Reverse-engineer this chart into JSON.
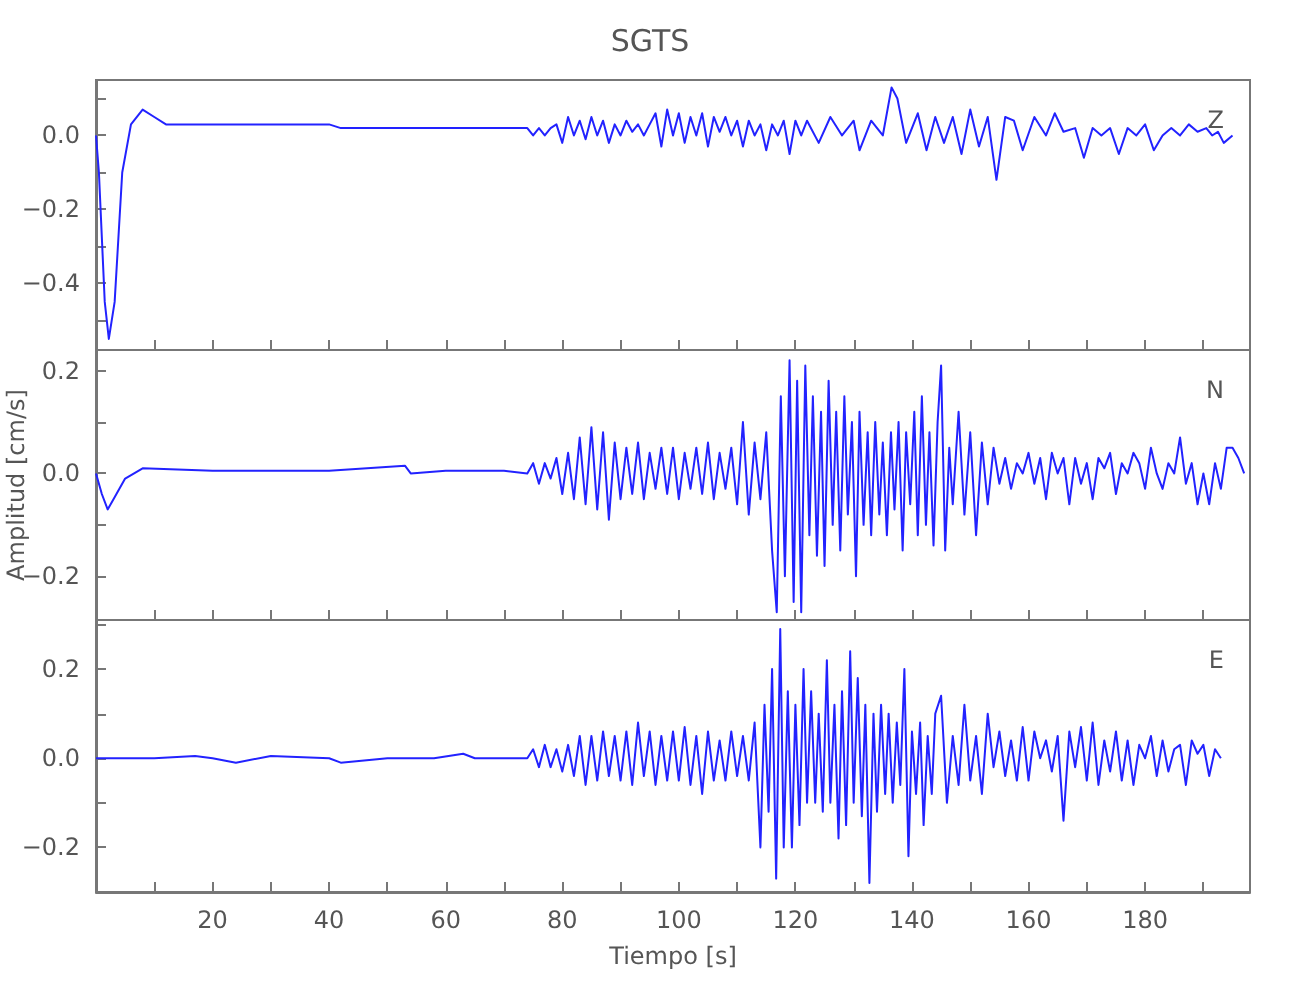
{
  "chart_data": [
    {
      "type": "line",
      "title": "SGTS",
      "annotations": [
        "Z"
      ],
      "tick_labels": "y",
      "marker": "none",
      "xlim": [
        0,
        198
      ],
      "xticks": [
        {
          "value": 10,
          "label": null
        },
        {
          "value": 20,
          "label": null
        },
        {
          "value": 30,
          "label": null
        },
        {
          "value": 40,
          "label": null
        },
        {
          "value": 50,
          "label": null
        },
        {
          "value": 60,
          "label": null
        },
        {
          "value": 70,
          "label": null
        },
        {
          "value": 80,
          "label": null
        },
        {
          "value": 90,
          "label": null
        },
        {
          "value": 100,
          "label": null
        },
        {
          "value": 110,
          "label": null
        },
        {
          "value": 120,
          "label": null
        },
        {
          "value": 130,
          "label": null
        },
        {
          "value": 140,
          "label": null
        },
        {
          "value": 150,
          "label": null
        },
        {
          "value": 160,
          "label": null
        },
        {
          "value": 170,
          "label": null
        },
        {
          "value": 180,
          "label": null
        },
        {
          "value": 190,
          "label": null
        }
      ],
      "ylim": [
        -0.58,
        0.15
      ],
      "yticks": [
        {
          "value": -0.5,
          "label": null
        },
        {
          "value": -0.4,
          "label": "−0.4"
        },
        {
          "value": -0.3,
          "label": null
        },
        {
          "value": -0.2,
          "label": "−0.2"
        },
        {
          "value": -0.1,
          "label": null
        },
        {
          "value": 0,
          "label": "0.0"
        },
        {
          "value": 0.1,
          "label": null
        }
      ],
      "series": [
        {
          "color": "#2222ff",
          "x": [
            0,
            0.5,
            1.5,
            2.2,
            3.2,
            4.5,
            6,
            8,
            10,
            12,
            20,
            30,
            40,
            42,
            50,
            60,
            70,
            74,
            75,
            76,
            77,
            78,
            79,
            80,
            81,
            82,
            83,
            84,
            85,
            86,
            87,
            88,
            89,
            90,
            91,
            92,
            93,
            94,
            95,
            96,
            97,
            98,
            99,
            100,
            101,
            102,
            103,
            104,
            105,
            106,
            107,
            108,
            109,
            110,
            111,
            112,
            113,
            114,
            115,
            116,
            117,
            118,
            119,
            120,
            121,
            122,
            124,
            126,
            128,
            130,
            131,
            133,
            135,
            136.5,
            137.5,
            139,
            141,
            142.5,
            144,
            145.5,
            147,
            148.5,
            150,
            151.5,
            153,
            154.5,
            156,
            157.5,
            159,
            161,
            163,
            164.5,
            166,
            168,
            169.5,
            171,
            172.5,
            174,
            175.5,
            177,
            178.5,
            180,
            181.5,
            183,
            184.5,
            186,
            187.5,
            189,
            190.5,
            191.5,
            192.5,
            193.5,
            195
          ],
          "values": [
            0.0,
            -0.1,
            -0.45,
            -0.55,
            -0.45,
            -0.1,
            0.03,
            0.07,
            0.05,
            0.03,
            0.03,
            0.03,
            0.03,
            0.02,
            0.02,
            0.02,
            0.02,
            0.02,
            0.0,
            0.02,
            0.0,
            0.02,
            0.03,
            -0.02,
            0.05,
            0.0,
            0.04,
            -0.01,
            0.05,
            0.0,
            0.04,
            -0.02,
            0.03,
            0.0,
            0.04,
            0.01,
            0.03,
            0.0,
            0.03,
            0.06,
            -0.03,
            0.07,
            0.0,
            0.06,
            -0.02,
            0.05,
            0.0,
            0.06,
            -0.03,
            0.05,
            0.01,
            0.05,
            0.0,
            0.04,
            -0.03,
            0.04,
            0.0,
            0.03,
            -0.04,
            0.03,
            0.0,
            0.04,
            -0.05,
            0.04,
            0.0,
            0.04,
            -0.02,
            0.05,
            0.0,
            0.04,
            -0.04,
            0.04,
            0.0,
            0.13,
            0.1,
            -0.02,
            0.06,
            -0.04,
            0.05,
            -0.02,
            0.05,
            -0.05,
            0.07,
            -0.03,
            0.05,
            -0.12,
            0.05,
            0.04,
            -0.04,
            0.05,
            0.0,
            0.06,
            0.01,
            0.02,
            -0.06,
            0.02,
            0.0,
            0.02,
            -0.05,
            0.02,
            0.0,
            0.03,
            -0.04,
            0.0,
            0.02,
            0.0,
            0.03,
            0.01,
            0.02,
            0.0,
            0.01,
            -0.02,
            0.0
          ]
        }
      ]
    },
    {
      "type": "line",
      "ylabel": "Amplitud [cm/s]",
      "annotations": [
        "N"
      ],
      "tick_labels": "y",
      "marker": "none",
      "xlim": [
        0,
        198
      ],
      "xticks": [
        {
          "value": 10,
          "label": null
        },
        {
          "value": 20,
          "label": null
        },
        {
          "value": 30,
          "label": null
        },
        {
          "value": 40,
          "label": null
        },
        {
          "value": 50,
          "label": null
        },
        {
          "value": 60,
          "label": null
        },
        {
          "value": 70,
          "label": null
        },
        {
          "value": 80,
          "label": null
        },
        {
          "value": 90,
          "label": null
        },
        {
          "value": 100,
          "label": null
        },
        {
          "value": 110,
          "label": null
        },
        {
          "value": 120,
          "label": null
        },
        {
          "value": 130,
          "label": null
        },
        {
          "value": 140,
          "label": null
        },
        {
          "value": 150,
          "label": null
        },
        {
          "value": 160,
          "label": null
        },
        {
          "value": 170,
          "label": null
        },
        {
          "value": 180,
          "label": null
        },
        {
          "value": 190,
          "label": null
        }
      ],
      "ylim": [
        -0.285,
        0.24
      ],
      "yticks": [
        {
          "value": -0.2,
          "label": "−0.2"
        },
        {
          "value": -0.1,
          "label": null
        },
        {
          "value": 0,
          "label": "0.0"
        },
        {
          "value": 0.1,
          "label": null
        },
        {
          "value": 0.2,
          "label": "0.2"
        }
      ],
      "series": [
        {
          "color": "#2222ff",
          "x": [
            0,
            1,
            2,
            3,
            5,
            8,
            20,
            40,
            53,
            54,
            60,
            70,
            74,
            75,
            76,
            77,
            78,
            79,
            80,
            81,
            82,
            83,
            84,
            85,
            86,
            87,
            88,
            89,
            90,
            91,
            92,
            93,
            94,
            95,
            96,
            97,
            98,
            99,
            100,
            101,
            102,
            103,
            104,
            105,
            106,
            107,
            108,
            109,
            110,
            111,
            112,
            113,
            114,
            115,
            116,
            116.8,
            117.5,
            118.2,
            119,
            119.7,
            120.3,
            121,
            121.7,
            122.4,
            123,
            123.7,
            124.4,
            125,
            125.7,
            126.4,
            127,
            127.7,
            128.4,
            129,
            129.7,
            130.4,
            131,
            131.7,
            132.4,
            133,
            133.7,
            134.4,
            135,
            135.7,
            136.4,
            137,
            137.7,
            138.4,
            139,
            139.7,
            140.4,
            141,
            141.7,
            142.4,
            143,
            143.7,
            144.4,
            145,
            145.7,
            146.4,
            147,
            148,
            149,
            150,
            151,
            152,
            153,
            154,
            155,
            156,
            157,
            158,
            159,
            160,
            161,
            162,
            163,
            164,
            165,
            166,
            167,
            168,
            169,
            170,
            171,
            172,
            173,
            174,
            175,
            176,
            177,
            178,
            179,
            180,
            181,
            182,
            183,
            184,
            185,
            186,
            187,
            188,
            189,
            190,
            191,
            192,
            193,
            194,
            195,
            196,
            197
          ],
          "values": [
            0,
            -0.04,
            -0.07,
            -0.05,
            -0.01,
            0.01,
            0.005,
            0.005,
            0.015,
            0.0,
            0.005,
            0.005,
            0.0,
            0.02,
            -0.02,
            0.02,
            -0.01,
            0.03,
            -0.04,
            0.04,
            -0.05,
            0.07,
            -0.06,
            0.09,
            -0.07,
            0.08,
            -0.09,
            0.06,
            -0.05,
            0.05,
            -0.04,
            0.06,
            -0.05,
            0.04,
            -0.03,
            0.05,
            -0.04,
            0.05,
            -0.05,
            0.04,
            -0.03,
            0.05,
            -0.04,
            0.06,
            -0.05,
            0.04,
            -0.03,
            0.05,
            -0.06,
            0.1,
            -0.08,
            0.06,
            -0.05,
            0.08,
            -0.15,
            -0.27,
            0.15,
            -0.2,
            0.22,
            -0.25,
            0.18,
            -0.27,
            0.21,
            -0.12,
            0.15,
            -0.16,
            0.12,
            -0.18,
            0.18,
            -0.1,
            0.12,
            -0.15,
            0.15,
            -0.08,
            0.1,
            -0.2,
            0.12,
            -0.1,
            0.08,
            -0.12,
            0.1,
            -0.08,
            0.06,
            -0.12,
            0.08,
            -0.07,
            0.1,
            -0.15,
            0.08,
            -0.06,
            0.12,
            -0.12,
            0.15,
            -0.1,
            0.08,
            -0.14,
            0.1,
            0.21,
            -0.15,
            0.05,
            -0.06,
            0.12,
            -0.08,
            0.08,
            -0.12,
            0.06,
            -0.06,
            0.05,
            -0.02,
            0.03,
            -0.03,
            0.02,
            0.0,
            0.04,
            -0.02,
            0.03,
            -0.05,
            0.04,
            0.0,
            0.03,
            -0.06,
            0.03,
            -0.02,
            0.02,
            -0.05,
            0.03,
            0.01,
            0.04,
            -0.04,
            0.02,
            0.0,
            0.04,
            0.02,
            -0.03,
            0.05,
            0.0,
            -0.03,
            0.02,
            0.0,
            0.07,
            -0.02,
            0.02,
            -0.06,
            0.0,
            -0.06,
            0.02,
            -0.03,
            0.05,
            0.05,
            0.03,
            0.0
          ]
        }
      ]
    },
    {
      "type": "line",
      "xlabel": "Tiempo [s]",
      "annotations": [
        "E"
      ],
      "marker": "none",
      "xlim": [
        0,
        198
      ],
      "xticks": [
        {
          "value": 10,
          "label": null
        },
        20,
        {
          "value": 30,
          "label": null
        },
        40,
        {
          "value": 50,
          "label": null
        },
        60,
        {
          "value": 70,
          "label": null
        },
        80,
        {
          "value": 90,
          "label": null
        },
        100,
        {
          "value": 110,
          "label": null
        },
        120,
        {
          "value": 130,
          "label": null
        },
        140,
        {
          "value": 150,
          "label": null
        },
        160,
        {
          "value": 170,
          "label": null
        },
        180,
        {
          "value": 190,
          "label": null
        }
      ],
      "ylim": [
        -0.3,
        0.31
      ],
      "yticks": [
        {
          "value": -0.2,
          "label": "−0.2"
        },
        {
          "value": -0.1,
          "label": null
        },
        {
          "value": 0,
          "label": "0.0"
        },
        {
          "value": 0.1,
          "label": null
        },
        {
          "value": 0.2,
          "label": "0.2"
        },
        {
          "value": 0.3,
          "label": null
        }
      ],
      "series": [
        {
          "color": "#2222ff",
          "x": [
            0,
            10,
            17,
            20,
            24,
            30,
            40,
            42,
            50,
            58,
            63,
            65,
            74,
            75,
            76,
            77,
            78,
            79,
            80,
            81,
            82,
            83,
            84,
            85,
            86,
            87,
            88,
            89,
            90,
            91,
            92,
            93,
            94,
            95,
            96,
            97,
            98,
            99,
            100,
            101,
            102,
            103,
            104,
            105,
            106,
            107,
            108,
            109,
            110,
            111,
            112,
            113,
            114,
            114.7,
            115.4,
            116,
            116.7,
            117.4,
            118,
            118.7,
            119.4,
            120,
            120.7,
            121.4,
            122,
            122.7,
            123.4,
            124,
            124.7,
            125.4,
            126,
            126.7,
            127.4,
            128,
            128.7,
            129.4,
            130,
            130.7,
            131.4,
            132,
            132.7,
            133.4,
            134,
            134.7,
            135.4,
            136,
            136.7,
            137.4,
            138,
            138.7,
            139.4,
            140,
            140.7,
            141.4,
            142,
            142.7,
            143.4,
            144,
            145,
            146,
            147,
            148,
            149,
            150,
            151,
            152,
            153,
            154,
            155,
            156,
            157,
            158,
            159,
            160,
            161,
            162,
            163,
            164,
            165,
            166,
            167,
            168,
            169,
            170,
            171,
            172,
            173,
            174,
            175,
            176,
            177,
            178,
            179,
            180,
            181,
            182,
            183,
            184,
            185,
            186,
            187,
            188,
            189,
            190,
            191,
            192,
            193
          ],
          "values": [
            0,
            0,
            0.005,
            0,
            -0.01,
            0.005,
            0,
            -0.01,
            0,
            0,
            0.01,
            0,
            0,
            0.02,
            -0.02,
            0.03,
            -0.02,
            0.02,
            -0.03,
            0.03,
            -0.04,
            0.05,
            -0.06,
            0.05,
            -0.05,
            0.06,
            -0.04,
            0.05,
            -0.05,
            0.06,
            -0.06,
            0.08,
            -0.04,
            0.06,
            -0.06,
            0.05,
            -0.05,
            0.06,
            -0.05,
            0.07,
            -0.06,
            0.05,
            -0.08,
            0.06,
            -0.05,
            0.04,
            -0.05,
            0.06,
            -0.04,
            0.05,
            -0.05,
            0.08,
            -0.2,
            0.12,
            -0.12,
            0.2,
            -0.27,
            0.29,
            -0.2,
            0.15,
            -0.2,
            0.12,
            -0.15,
            0.2,
            -0.1,
            0.15,
            -0.1,
            0.1,
            -0.12,
            0.22,
            -0.1,
            0.12,
            -0.18,
            0.15,
            -0.15,
            0.24,
            -0.1,
            0.18,
            -0.13,
            0.12,
            -0.28,
            0.1,
            -0.12,
            0.12,
            -0.08,
            0.1,
            -0.1,
            0.08,
            -0.06,
            0.2,
            -0.22,
            0.06,
            -0.08,
            0.08,
            -0.15,
            0.05,
            -0.08,
            0.1,
            0.14,
            -0.1,
            0.05,
            -0.06,
            0.12,
            -0.05,
            0.05,
            -0.08,
            0.1,
            -0.02,
            0.06,
            -0.04,
            0.04,
            -0.05,
            0.07,
            -0.05,
            0.06,
            0.0,
            0.04,
            -0.03,
            0.05,
            -0.14,
            0.06,
            -0.02,
            0.07,
            -0.05,
            0.08,
            -0.06,
            0.04,
            -0.03,
            0.06,
            -0.05,
            0.04,
            -0.06,
            0.03,
            0.0,
            0.05,
            -0.04,
            0.04,
            -0.03,
            0.02,
            0.03,
            -0.06,
            0.04,
            0.01,
            0.03,
            -0.04,
            0.02,
            0.0
          ]
        }
      ]
    }
  ]
}
